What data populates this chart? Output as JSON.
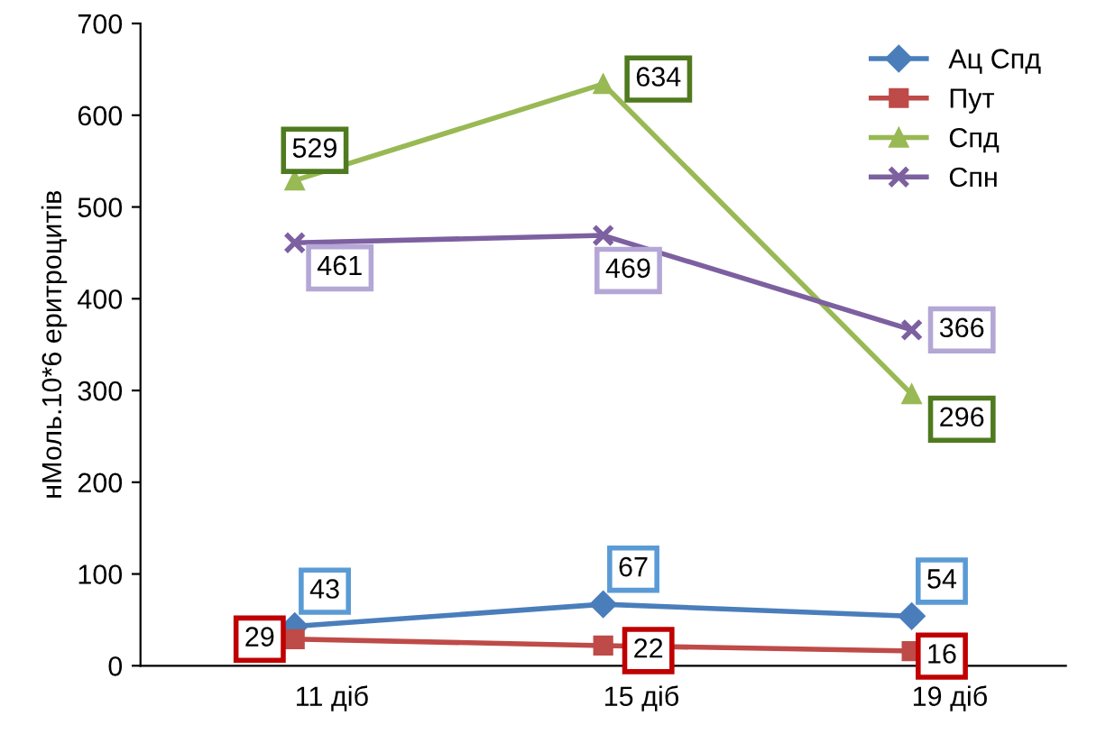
{
  "chart_data": {
    "type": "line",
    "ylabel": "нМоль.10*6 еритроцитів",
    "categories": [
      "11 діб",
      "15 діб",
      "19 діб"
    ],
    "series": [
      {
        "name": "Ац Спд",
        "color": "#4a7ebb",
        "marker": "diamond",
        "values": [
          43,
          67,
          54
        ]
      },
      {
        "name": "Пут",
        "color": "#be4b48",
        "marker": "square",
        "values": [
          29,
          22,
          16
        ]
      },
      {
        "name": "Спд",
        "color": "#98b954",
        "marker": "triangle",
        "values": [
          529,
          634,
          296
        ]
      },
      {
        "name": "Спн",
        "color": "#7d60a0",
        "marker": "cross",
        "values": [
          461,
          469,
          366
        ]
      }
    ],
    "ylim": [
      0,
      700
    ],
    "yticks": [
      0,
      100,
      200,
      300,
      400,
      500,
      600,
      700
    ],
    "data_labels": true,
    "grid": false,
    "legend": "top right",
    "line_style": "solid"
  }
}
